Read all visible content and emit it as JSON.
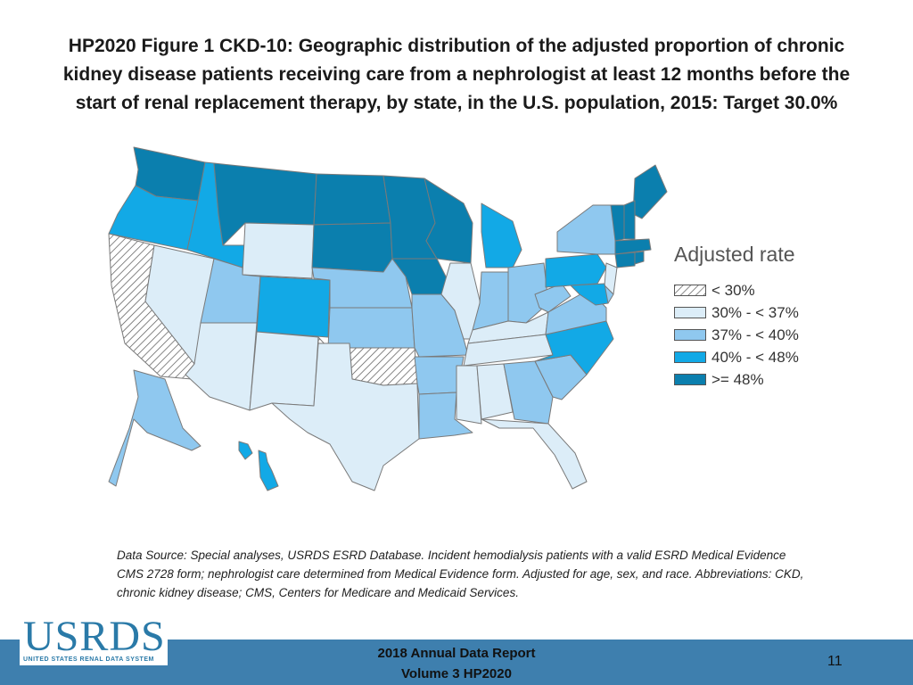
{
  "title": {
    "line1": "HP2020 Figure 1 CKD-10: Geographic distribution of the adjusted proportion of chronic",
    "line2": "kidney disease patients receiving care from a nephrologist at least 12 months before the",
    "line3": "start of renal replacement therapy, by state, in the U.S. population, 2015: Target 30.0%"
  },
  "legend": {
    "title": "Adjusted rate",
    "items": [
      {
        "label": "< 30%",
        "color": "hatch"
      },
      {
        "label": "30% - < 37%",
        "color": "#dcedf8"
      },
      {
        "label": "37% - < 40%",
        "color": "#8fc8ef"
      },
      {
        "label": "40% - < 48%",
        "color": "#12a9e6"
      },
      {
        "label": ">= 48%",
        "color": "#0b7fae"
      }
    ]
  },
  "map_data": {
    "states": {
      "WA": 4,
      "OR": 3,
      "CA": 0,
      "ID": 3,
      "NV": 1,
      "MT": 4,
      "WY": 1,
      "UT": 2,
      "AZ": 1,
      "CO": 3,
      "NM": 1,
      "ND": 4,
      "SD": 4,
      "NE": 2,
      "KS": 2,
      "OK": 0,
      "TX": 1,
      "MN": 4,
      "IA": 4,
      "MO": 2,
      "AR": 2,
      "LA": 2,
      "WI": 4,
      "IL": 1,
      "MI": 3,
      "IN": 2,
      "OH": 2,
      "KY": 1,
      "TN": 1,
      "MS": 1,
      "AL": 1,
      "GA": 2,
      "FL": 1,
      "SC": 2,
      "NC": 3,
      "VA": 2,
      "WV": 2,
      "PA": 3,
      "NY": 2,
      "ME": 4,
      "NH": 4,
      "VT": 4,
      "MA": 4,
      "CT": 4,
      "RI": 4,
      "NJ": 1,
      "DE": 2,
      "MD": 3,
      "AK": 2,
      "HI": 3
    }
  },
  "footnote": "Data Source: Special analyses, USRDS ESRD Database. Incident hemodialysis patients with a valid ESRD Medical Evidence CMS 2728 form; nephrologist care determined from Medical Evidence form. Adjusted for age, sex, and race. Abbreviations: CKD, chronic kidney disease; CMS, Centers for Medicare and Medicaid Services.",
  "footer": {
    "logo_text": "USRDS",
    "logo_subtitle": "UNITED STATES RENAL DATA SYSTEM",
    "report_line1": "2018 Annual Data Report",
    "report_line2": "Volume 3 HP2020",
    "page_number": "11"
  },
  "colors": {
    "footer_bar": "#3e7fae",
    "logo": "#2a7aa8"
  }
}
